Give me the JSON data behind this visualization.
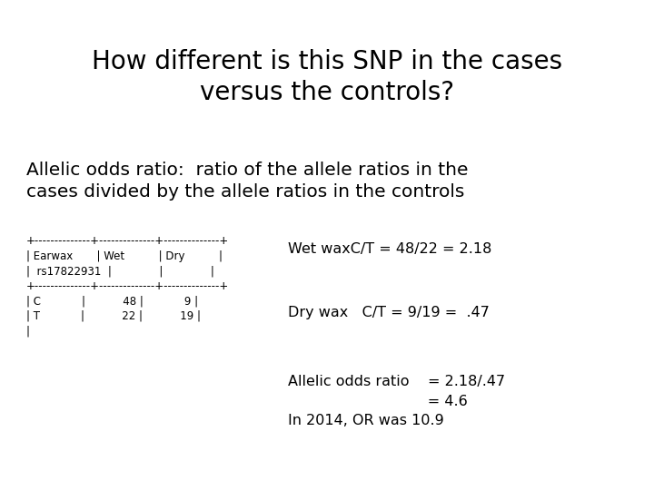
{
  "title_line1": "How different is this SNP in the cases",
  "title_line2": "versus the controls?",
  "subtitle_line1": "Allelic odds ratio:  ratio of the allele ratios in the",
  "subtitle_line2": "cases divided by the allele ratios in the controls",
  "table_text": "+--------------+--------------+--------------+\n| Earwax       | Wet          | Dry          |\n|  rs17822931  |              |              |\n+--------------+--------------+--------------+\n| C            |           48 |            9 |\n| T            |           22 |           19 |\n|",
  "annotation1": "Wet waxC/T = 48/22 = 2.18",
  "annotation2": "Dry wax   C/T = 9/19 =  .47",
  "annotation3_line1": "Allelic odds ratio    = 2.18/.47",
  "annotation3_line2": "                              = 4.6",
  "annotation3_line3": "In 2014, OR was 10.9",
  "bg_color": "#ffffff",
  "text_color": "#000000",
  "title_fontsize": 20,
  "subtitle_fontsize": 14.5,
  "table_fontsize": 8.5,
  "annotation_fontsize": 11.5
}
